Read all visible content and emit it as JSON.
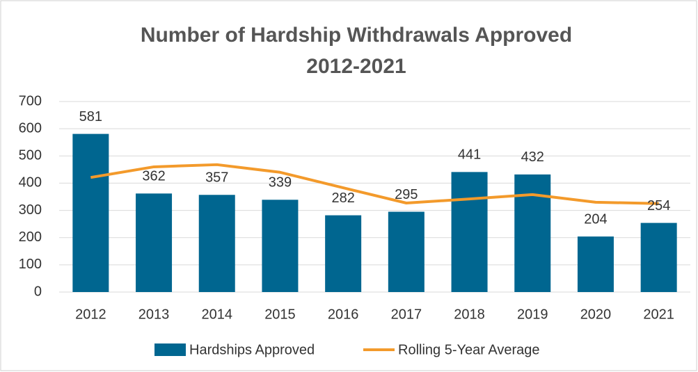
{
  "chart_data": {
    "type": "bar",
    "title": [
      "Number of Hardship Withdrawals Approved",
      "2012-2021"
    ],
    "categories": [
      "2012",
      "2013",
      "2014",
      "2015",
      "2016",
      "2017",
      "2018",
      "2019",
      "2020",
      "2021"
    ],
    "series": [
      {
        "name": "Hardships Approved",
        "type": "bar",
        "color": "#006690",
        "values": [
          581,
          362,
          357,
          339,
          282,
          295,
          441,
          432,
          204,
          254
        ]
      },
      {
        "name": "Rolling 5-Year Average",
        "type": "line",
        "color": "#f39a2b",
        "values": [
          421,
          460,
          468,
          440,
          383,
          327,
          342,
          358,
          330,
          325
        ]
      }
    ],
    "ylim": [
      0,
      700
    ],
    "yticks": [
      0,
      100,
      200,
      300,
      400,
      500,
      600,
      700
    ],
    "grid": true,
    "legend": "bottom"
  }
}
